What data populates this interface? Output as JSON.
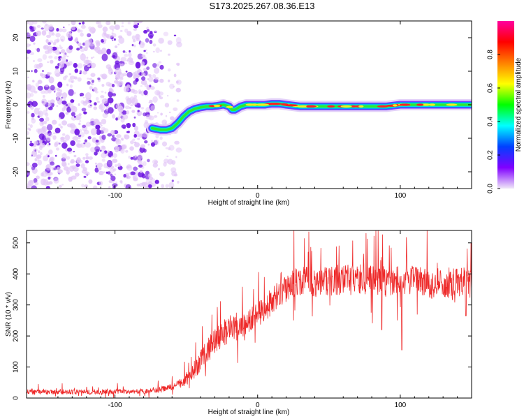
{
  "title": "S173.2025.267.08.36.E13",
  "colors": {
    "snr_line": "#ee2a2a",
    "speckle_low": "#e2c6f7",
    "speckle_high": "#6a10e0",
    "frame": "#000000"
  },
  "chart_data": [
    {
      "type": "heatmap",
      "title": "",
      "xlabel": "Height of straight line (km)",
      "ylabel": "Frequency (Hz)",
      "xlim": [
        -162,
        150
      ],
      "ylim": [
        -25,
        25
      ],
      "x_ticks": [
        -100,
        0,
        100
      ],
      "y_ticks": [
        -20,
        -10,
        0,
        10,
        20
      ],
      "x_tick_labels": [
        "-100",
        "0",
        "100"
      ],
      "y_tick_labels": [
        "-20",
        "-10",
        "0",
        "10",
        "20"
      ],
      "noise_region_x": [
        -162,
        -55
      ],
      "signal_track": {
        "x": [
          -74,
          -68,
          -64,
          -60,
          -56,
          -52,
          -48,
          -44,
          -40,
          -36,
          -32,
          -28,
          -24,
          -20,
          -18,
          -16,
          -12,
          -8,
          -4,
          0,
          5,
          10,
          15,
          20,
          30,
          40,
          50,
          60,
          70,
          80,
          90,
          100,
          110,
          120,
          130,
          140,
          150
        ],
        "y": [
          -7,
          -7.5,
          -7.5,
          -7,
          -5.5,
          -3.5,
          -2,
          -1.2,
          -0.8,
          -0.5,
          -0.5,
          -0.3,
          0,
          -0.5,
          -1.5,
          -1.5,
          -0.5,
          0,
          0,
          0,
          0,
          0.3,
          0.3,
          0,
          -0.5,
          -0.5,
          -0.5,
          -0.5,
          -0.5,
          -0.5,
          -0.5,
          0,
          0,
          0,
          0,
          0,
          0
        ]
      },
      "colorbar": {
        "label": "Normalized spectral amplitude",
        "range": [
          0,
          1
        ],
        "ticks": [
          0,
          0.2,
          0.4,
          0.6,
          0.8
        ],
        "tick_labels": [
          "0.0",
          "0.2",
          "0.4",
          "0.6",
          "0.8"
        ],
        "colormap": [
          "#f0e8f8",
          "#8000ff",
          "#0040ff",
          "#00ffff",
          "#00ff00",
          "#ffff00",
          "#ff8000",
          "#ff0000",
          "#ff00a0"
        ]
      }
    },
    {
      "type": "line",
      "title": "",
      "xlabel": "Height of straight line (km)",
      "ylabel": "SNR (10 * v/v)",
      "xlim": [
        -162,
        150
      ],
      "ylim": [
        0,
        540
      ],
      "x_ticks": [
        -100,
        0,
        100
      ],
      "y_ticks": [
        0,
        100,
        200,
        300,
        400,
        500
      ],
      "x_tick_labels": [
        "-100",
        "0",
        "100"
      ],
      "y_tick_labels": [
        "0",
        "100",
        "200",
        "300",
        "400",
        "500"
      ],
      "series": [
        {
          "name": "SNR",
          "x": [
            -162,
            -140,
            -120,
            -100,
            -80,
            -70,
            -60,
            -55,
            -50,
            -45,
            -40,
            -35,
            -30,
            -25,
            -20,
            -15,
            -10,
            -5,
            0,
            5,
            10,
            15,
            20,
            25,
            30,
            40,
            50,
            60,
            70,
            80,
            90,
            100,
            110,
            120,
            130,
            140,
            150
          ],
          "values": [
            20,
            20,
            20,
            20,
            22,
            25,
            35,
            45,
            60,
            85,
            120,
            150,
            180,
            210,
            220,
            230,
            240,
            255,
            270,
            290,
            310,
            335,
            355,
            370,
            375,
            375,
            380,
            380,
            382,
            378,
            375,
            378,
            380,
            365,
            370,
            372,
            370
          ],
          "noise": [
            8,
            8,
            8,
            8,
            8,
            9,
            12,
            15,
            22,
            30,
            38,
            42,
            45,
            45,
            45,
            45,
            45,
            45,
            45,
            45,
            45,
            45,
            45,
            45,
            48,
            50,
            50,
            50,
            50,
            50,
            50,
            50,
            50,
            50,
            50,
            50,
            50
          ],
          "dips": [
            {
              "x": 101,
              "y": 155
            },
            {
              "x": 87,
              "y": 220
            },
            {
              "x": 146,
              "y": 265
            }
          ]
        }
      ]
    }
  ]
}
